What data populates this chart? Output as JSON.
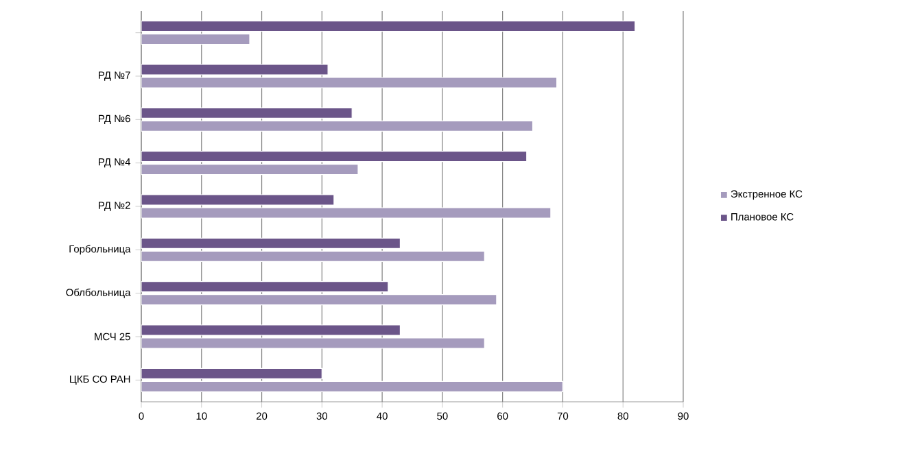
{
  "chart_data": {
    "type": "bar",
    "orientation": "horizontal",
    "categories": [
      null,
      "РД №7",
      "РД №6",
      "РД №4",
      "РД №2",
      "Горбольница",
      "Облбольница",
      "МСЧ 25",
      "ЦКБ СО РАН"
    ],
    "series": [
      {
        "name": "Экстренное КС",
        "color": "#a59bbd",
        "values": [
          18,
          69,
          65,
          36,
          68,
          57,
          59,
          57,
          70
        ]
      },
      {
        "name": "Плановое КС",
        "color": "#6b5589",
        "values": [
          82,
          31,
          35,
          64,
          32,
          43,
          41,
          43,
          30
        ]
      }
    ],
    "xlim": [
      0,
      90
    ],
    "xticks": [
      0,
      10,
      20,
      30,
      40,
      50,
      60,
      70,
      80,
      90
    ],
    "grid": "x",
    "legend": "right"
  }
}
